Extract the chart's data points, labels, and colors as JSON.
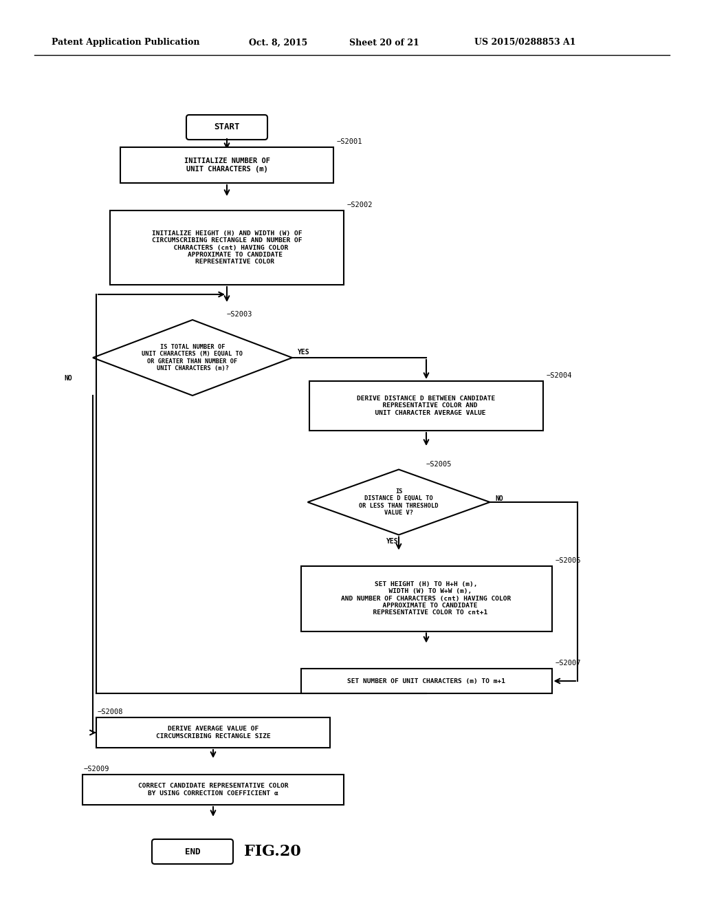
{
  "bg_color": "#ffffff",
  "header_text": "Patent Application Publication",
  "header_date": "Oct. 8, 2015",
  "header_sheet": "Sheet 20 of 21",
  "header_patent": "US 2015/0288853 A1",
  "fig_label": "FIG.20",
  "text_fontsize": 6.8,
  "tag_fontsize": 7.5,
  "line_width": 1.5
}
